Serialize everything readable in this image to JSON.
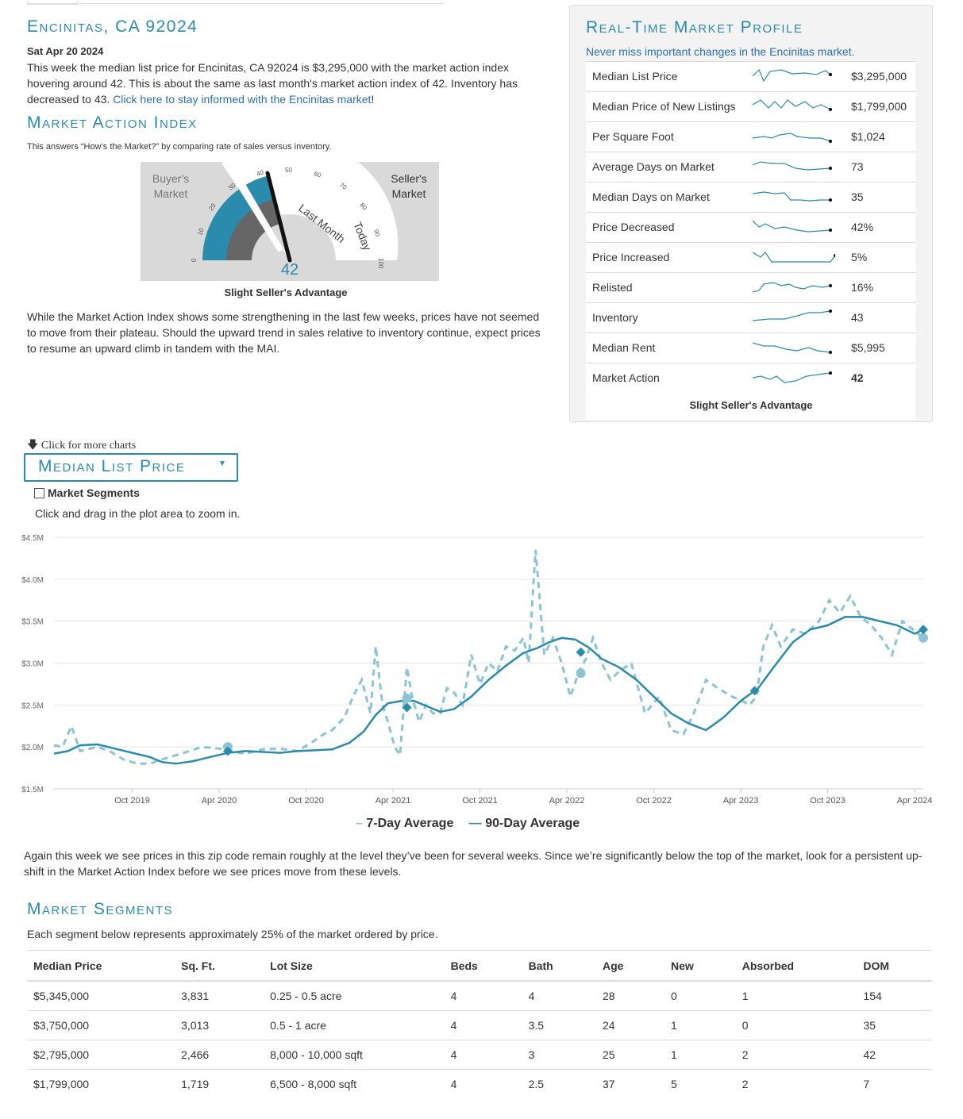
{
  "header": {
    "title": "Encinitas, CA 92024",
    "date": "Sat Apr 20 2024",
    "intro": "This week the median list price for Encinitas, CA 92024 is $3,295,000 with the market action index hovering around 42. This is about the same as last month's market action index of 42. Inventory has decreased to 43.",
    "intro_link": "Click here to stay informed with the Encinitas market",
    "intro_end": "!"
  },
  "mai": {
    "title": "Market Action Index",
    "subtitle": "This answers “How’s the Market?” by comparing rate of sales versus inventory.",
    "buyers": "Buyer's Market",
    "sellers": "Seller's Market",
    "last_month": "Last Month",
    "today": "Today",
    "value": "42",
    "status": "Slight Seller's Advantage",
    "ticks": [
      "0",
      "10",
      "20",
      "30",
      "40",
      "50",
      "60",
      "70",
      "80",
      "90",
      "100"
    ],
    "commentary": "While the Market Action Index shows some strengthening in the last few weeks, prices have not seemed to move from their plateau. Should the upward trend in sales relative to inventory continue, expect prices to resume an upward climb in tandem with the MAI."
  },
  "profile": {
    "title": "Real-Time Market Profile",
    "subtitle": "Never miss important changes in the Encinitas market.",
    "rows": [
      {
        "label": "Median List Price",
        "value": "$3,295,000"
      },
      {
        "label": "Median Price of New Listings",
        "value": "$1,799,000"
      },
      {
        "label": "Per Square Foot",
        "value": "$1,024"
      },
      {
        "label": "Average Days on Market",
        "value": "73"
      },
      {
        "label": "Median Days on Market",
        "value": "35"
      },
      {
        "label": "Price Decreased",
        "value": "42%"
      },
      {
        "label": "Price Increased",
        "value": "5%"
      },
      {
        "label": "Relisted",
        "value": "16%"
      },
      {
        "label": "Inventory",
        "value": "43"
      },
      {
        "label": "Median Rent",
        "value": "$5,995"
      },
      {
        "label": "Market Action",
        "value": "42"
      }
    ],
    "advantage": "Slight Seller's Advantage"
  },
  "chart_controls": {
    "more_charts": "Click for more charts",
    "dropdown_label": "Median List Price",
    "segments_checkbox": "Market Segments",
    "zoom_hint": "Click and drag in the plot area to zoom in."
  },
  "chart_data": {
    "type": "line",
    "title": "Median List Price",
    "xlabel": "",
    "ylabel": "",
    "ylim": [
      1.5,
      4.5
    ],
    "y_ticks": [
      "$1.5M",
      "$2.0M",
      "$2.5M",
      "$3.0M",
      "$3.5M",
      "$4.0M",
      "$4.5M"
    ],
    "x_ticks": [
      "Oct 2019",
      "Apr 2020",
      "Oct 2020",
      "Apr 2021",
      "Oct 2021",
      "Apr 2022",
      "Oct 2022",
      "Apr 2023",
      "Oct 2023",
      "Apr 2024"
    ],
    "x_start": 2019.3,
    "x_end": 2024.3,
    "series": [
      {
        "name": "7-Day Average",
        "style": "dashed",
        "color": "#8cc4d6",
        "x": [
          2019.3,
          2019.35,
          2019.4,
          2019.45,
          2019.55,
          2019.62,
          2019.7,
          2019.78,
          2019.85,
          2019.92,
          2020.0,
          2020.08,
          2020.15,
          2020.25,
          2020.3,
          2020.4,
          2020.5,
          2020.6,
          2020.7,
          2020.78,
          2020.85,
          2020.9,
          2020.97,
          2021.02,
          2021.07,
          2021.12,
          2021.15,
          2021.19,
          2021.22,
          2021.26,
          2021.29,
          2021.33,
          2021.36,
          2021.4,
          2021.44,
          2021.48,
          2021.52,
          2021.56,
          2021.6,
          2021.65,
          2021.7,
          2021.75,
          2021.8,
          2021.85,
          2021.9,
          2021.95,
          2022.0,
          2022.03,
          2022.07,
          2022.12,
          2022.17,
          2022.22,
          2022.27,
          2022.32,
          2022.36,
          2022.4,
          2022.45,
          2022.5,
          2022.55,
          2022.62,
          2022.7,
          2022.78,
          2022.85,
          2022.92,
          2022.98,
          2023.05,
          2023.12,
          2023.2,
          2023.26,
          2023.3,
          2023.34,
          2023.38,
          2023.43,
          2023.48,
          2023.55,
          2023.62,
          2023.7,
          2023.76,
          2023.82,
          2023.88,
          2023.94,
          2024.0,
          2024.06,
          2024.12,
          2024.18,
          2024.24,
          2024.3
        ],
        "y": [
          2.02,
          2.0,
          2.25,
          1.95,
          2.0,
          1.95,
          1.85,
          1.8,
          1.8,
          1.85,
          1.9,
          1.95,
          2.0,
          1.98,
          1.95,
          1.92,
          1.97,
          1.98,
          1.95,
          2.05,
          2.15,
          2.2,
          2.35,
          2.6,
          2.8,
          2.4,
          3.2,
          2.5,
          2.3,
          2.0,
          1.9,
          2.95,
          2.6,
          2.3,
          2.5,
          2.4,
          2.4,
          2.7,
          2.65,
          2.5,
          3.1,
          2.75,
          3.0,
          2.9,
          3.2,
          3.15,
          3.3,
          3.0,
          4.35,
          3.1,
          3.3,
          3.0,
          2.6,
          2.9,
          3.05,
          3.3,
          3.0,
          2.8,
          2.9,
          3.0,
          2.4,
          2.6,
          2.2,
          2.15,
          2.4,
          2.8,
          2.7,
          2.6,
          2.55,
          2.5,
          2.6,
          3.2,
          3.45,
          3.2,
          3.4,
          3.35,
          3.5,
          3.75,
          3.6,
          3.8,
          3.55,
          3.45,
          3.3,
          3.1,
          3.5,
          3.4,
          3.3
        ]
      },
      {
        "name": "90-Day Average",
        "style": "solid",
        "color": "#2a8bad",
        "x": [
          2019.3,
          2019.38,
          2019.45,
          2019.55,
          2019.65,
          2019.75,
          2019.85,
          2019.92,
          2020.0,
          2020.1,
          2020.2,
          2020.3,
          2020.4,
          2020.5,
          2020.6,
          2020.7,
          2020.8,
          2020.9,
          2021.0,
          2021.08,
          2021.15,
          2021.22,
          2021.3,
          2021.37,
          2021.45,
          2021.52,
          2021.6,
          2021.7,
          2021.8,
          2021.9,
          2022.0,
          2022.08,
          2022.15,
          2022.22,
          2022.3,
          2022.38,
          2022.45,
          2022.55,
          2022.65,
          2022.75,
          2022.85,
          2022.95,
          2023.05,
          2023.15,
          2023.25,
          2023.35,
          2023.45,
          2023.55,
          2023.65,
          2023.75,
          2023.85,
          2023.95,
          2024.05,
          2024.15,
          2024.25,
          2024.3
        ],
        "y": [
          1.92,
          1.95,
          2.02,
          2.03,
          1.98,
          1.93,
          1.88,
          1.82,
          1.8,
          1.83,
          1.88,
          1.93,
          1.95,
          1.94,
          1.93,
          1.95,
          1.96,
          1.97,
          2.05,
          2.18,
          2.38,
          2.52,
          2.55,
          2.55,
          2.48,
          2.42,
          2.45,
          2.6,
          2.8,
          2.97,
          3.12,
          3.18,
          3.25,
          3.3,
          3.28,
          3.18,
          3.05,
          2.95,
          2.8,
          2.6,
          2.4,
          2.28,
          2.2,
          2.35,
          2.55,
          2.7,
          2.98,
          3.25,
          3.4,
          3.45,
          3.55,
          3.55,
          3.5,
          3.45,
          3.35,
          3.4
        ]
      }
    ],
    "markers": [
      {
        "series": "7-Day Average",
        "shape": "circle",
        "x": 2020.3,
        "y": 2.0
      },
      {
        "series": "90-Day Average",
        "shape": "diamond",
        "x": 2020.3,
        "y": 1.95
      },
      {
        "series": "7-Day Average",
        "shape": "circle",
        "x": 2021.33,
        "y": 2.58
      },
      {
        "series": "90-Day Average",
        "shape": "diamond",
        "x": 2021.33,
        "y": 2.47
      },
      {
        "series": "7-Day Average",
        "shape": "circle",
        "x": 2022.33,
        "y": 2.88
      },
      {
        "series": "90-Day Average",
        "shape": "diamond",
        "x": 2022.33,
        "y": 3.13
      },
      {
        "series": "90-Day Average",
        "shape": "diamond",
        "x": 2023.33,
        "y": 2.67
      },
      {
        "series": "7-Day Average",
        "shape": "circle",
        "x": 2024.3,
        "y": 3.3
      },
      {
        "series": "90-Day Average",
        "shape": "diamond",
        "x": 2024.3,
        "y": 3.4
      }
    ],
    "legend": [
      "7-Day Average",
      "90-Day Average"
    ]
  },
  "chart_commentary": "Again this week we see prices in this zip code remain roughly at the level they’ve been for several weeks. Since we’re significantly below the top of the market, look for a persistent up-shift in the Market Action Index before we see prices move from these levels.",
  "segments": {
    "title": "Market Segments",
    "subtitle": "Each segment below represents approximately 25% of the market ordered by price.",
    "columns": [
      "Median Price",
      "Sq. Ft.",
      "Lot Size",
      "Beds",
      "Bath",
      "Age",
      "New",
      "Absorbed",
      "DOM"
    ],
    "rows": [
      [
        "$5,345,000",
        "3,831",
        "0.25 - 0.5 acre",
        "4",
        "4",
        "28",
        "0",
        "1",
        "154"
      ],
      [
        "$3,750,000",
        "3,013",
        "0.5 - 1 acre",
        "4",
        "3.5",
        "24",
        "1",
        "0",
        "35"
      ],
      [
        "$2,795,000",
        "2,466",
        "8,000 - 10,000 sqft",
        "4",
        "3",
        "25",
        "1",
        "2",
        "42"
      ],
      [
        "$1,799,000",
        "1,719",
        "6,500 - 8,000 sqft",
        "4",
        "2.5",
        "37",
        "5",
        "2",
        "7"
      ]
    ]
  },
  "colors": {
    "accent": "#2a8bad",
    "light": "#8cc4d6",
    "link": "#2a6fb0"
  }
}
